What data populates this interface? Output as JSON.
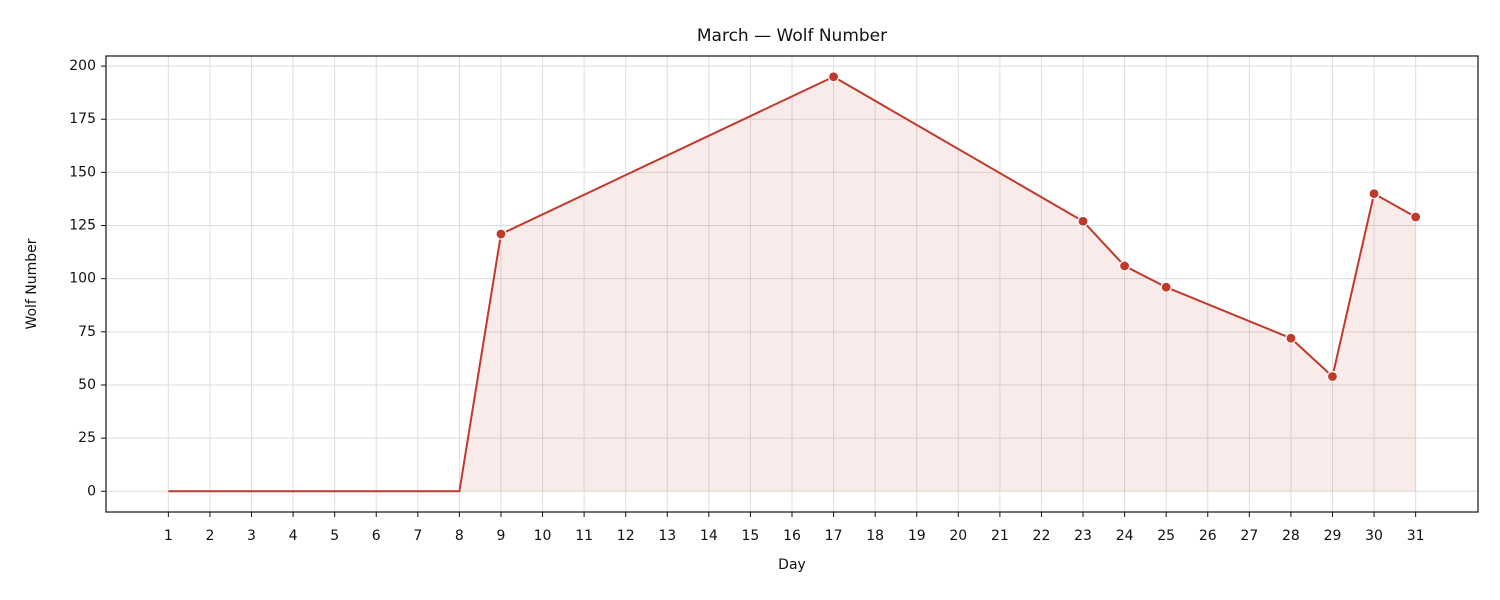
{
  "chart_data": {
    "type": "line",
    "title": "March — Wolf Number",
    "xlabel": "Day",
    "ylabel": "Wolf Number",
    "x": [
      1,
      2,
      3,
      4,
      5,
      6,
      7,
      8,
      9,
      17,
      23,
      24,
      25,
      28,
      29,
      30,
      31
    ],
    "series": [
      {
        "name": "Wolf Number",
        "color": "#c0392b",
        "values": [
          0,
          0,
          0,
          0,
          0,
          0,
          0,
          0,
          121,
          195,
          127,
          106,
          96,
          72,
          54,
          140,
          129
        ]
      }
    ],
    "xlim": [
      -0.5,
      32.5
    ],
    "ylim": [
      -9.75,
      204.75
    ],
    "xticks": [
      1,
      2,
      3,
      4,
      5,
      6,
      7,
      8,
      9,
      10,
      11,
      12,
      13,
      14,
      15,
      16,
      17,
      18,
      19,
      20,
      21,
      22,
      23,
      24,
      25,
      26,
      27,
      28,
      29,
      30,
      31
    ],
    "yticks": [
      0,
      25,
      50,
      75,
      100,
      125,
      150,
      175,
      200
    ],
    "grid": true,
    "fill": true
  }
}
